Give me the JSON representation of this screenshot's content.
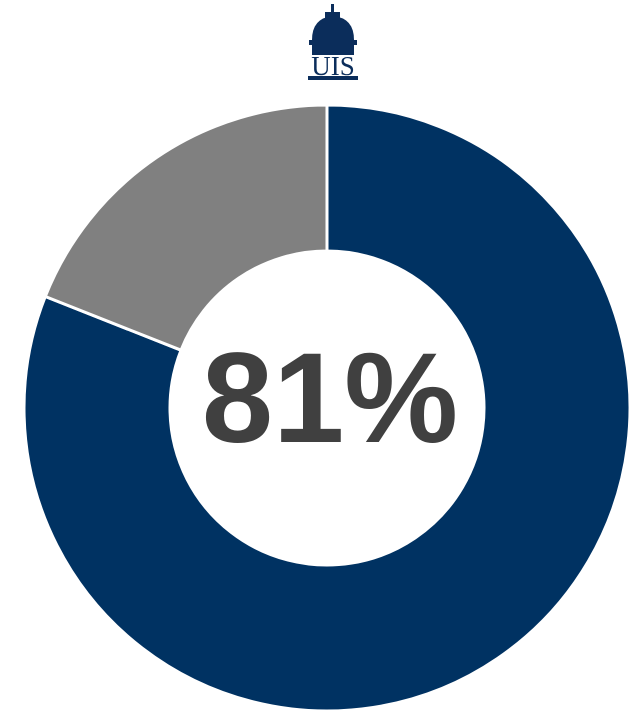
{
  "chart_data": {
    "type": "donut",
    "logo_text": "UIS",
    "values": [
      81,
      19
    ],
    "value_labels": [
      "81%",
      null
    ],
    "colors": [
      "#003262",
      "#808080"
    ]
  }
}
